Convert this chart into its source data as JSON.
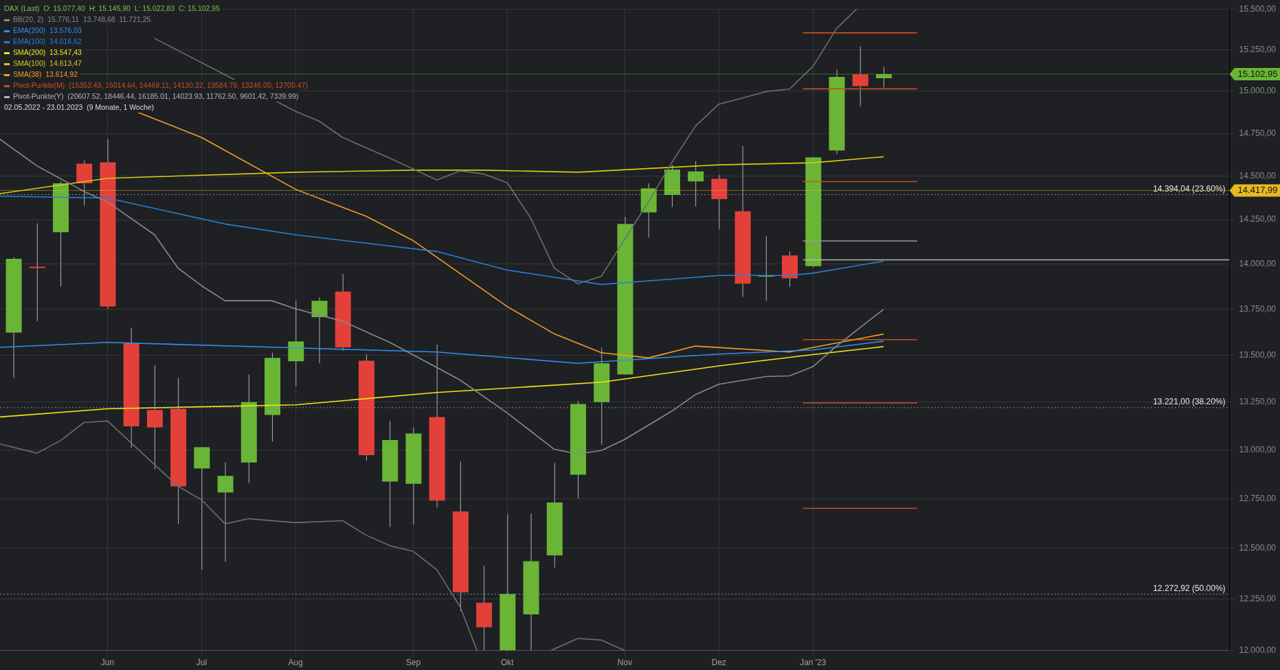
{
  "chart_data": {
    "type": "candlestick",
    "title": "DAX (Last)  O: 15.077,40  H: 15.145,90  L: 15.022,83  C: 15.102,95",
    "subtitle": "02.05.2022 - 23.01.2023  (9 Monate, 1 Woche)",
    "x": [
      "2022-05-09",
      "2022-05-16",
      "2022-05-23",
      "2022-05-30",
      "2022-06-06",
      "2022-06-13",
      "2022-06-20",
      "2022-06-27",
      "2022-07-04",
      "2022-07-11",
      "2022-07-18",
      "2022-07-25",
      "2022-08-01",
      "2022-08-08",
      "2022-08-15",
      "2022-08-22",
      "2022-08-29",
      "2022-09-05",
      "2022-09-12",
      "2022-09-19",
      "2022-09-26",
      "2022-10-03",
      "2022-10-10",
      "2022-10-17",
      "2022-10-24",
      "2022-10-31",
      "2022-11-07",
      "2022-11-14",
      "2022-11-21",
      "2022-11-28",
      "2022-12-05",
      "2022-12-12",
      "2022-12-19",
      "2022-12-26",
      "2023-01-02",
      "2023-01-09",
      "2023-01-16",
      "2023-01-23"
    ],
    "ohlc": [
      [
        13623,
        14040,
        13379,
        14030
      ],
      [
        13986,
        14230,
        13685,
        13985
      ],
      [
        14180,
        14470,
        13875,
        14459
      ],
      [
        14572,
        14592,
        14330,
        14459
      ],
      [
        14580,
        14715,
        13752,
        13765
      ],
      [
        13565,
        13648,
        13010,
        13123
      ],
      [
        13209,
        13447,
        12900,
        13117
      ],
      [
        13215,
        13379,
        12622,
        12812
      ],
      [
        12904,
        13014,
        12393,
        13014
      ],
      [
        12781,
        12935,
        12432,
        12866
      ],
      [
        12935,
        13397,
        12829,
        13250
      ],
      [
        13182,
        13514,
        13043,
        13486
      ],
      [
        13468,
        13797,
        13335,
        13575
      ],
      [
        13707,
        13815,
        13457,
        13797
      ],
      [
        13848,
        13945,
        13525,
        13543
      ],
      [
        13471,
        13507,
        12945,
        12973
      ],
      [
        12837,
        13151,
        12606,
        13051
      ],
      [
        12825,
        13117,
        12618,
        13085
      ],
      [
        13172,
        13558,
        12705,
        12740
      ],
      [
        12685,
        12940,
        12190,
        12282
      ],
      [
        12231,
        12413,
        12000,
        12112
      ],
      [
        12000,
        12671,
        12000,
        12274
      ],
      [
        12174,
        12674,
        12000,
        12435
      ],
      [
        12464,
        12932,
        12404,
        12730
      ],
      [
        12872,
        13257,
        12750,
        13240
      ],
      [
        13250,
        13541,
        13026,
        13457
      ],
      [
        13397,
        14267,
        13397,
        14226
      ],
      [
        14292,
        14459,
        14150,
        14430
      ],
      [
        14392,
        14567,
        14323,
        14539
      ],
      [
        14470,
        14588,
        14326,
        14528
      ],
      [
        14485,
        14508,
        14197,
        14368
      ],
      [
        14299,
        14676,
        13819,
        13891
      ],
      [
        13937,
        14158,
        13797,
        13938
      ],
      [
        14049,
        14071,
        13872,
        13921
      ],
      [
        13989,
        14609,
        13982,
        14609
      ],
      [
        14649,
        15130,
        14628,
        15086
      ],
      [
        15102,
        15272,
        14910,
        15030
      ],
      [
        15077.4,
        15145.9,
        15022.83,
        15102.95
      ]
    ],
    "colors": [
      "#6ab535",
      "#e4403a",
      "#6ab535",
      "#e4403a",
      "#e4403a",
      "#e4403a",
      "#e4403a",
      "#e4403a",
      "#6ab535",
      "#6ab535",
      "#6ab535",
      "#6ab535",
      "#6ab535",
      "#6ab535",
      "#e4403a",
      "#e4403a",
      "#6ab535",
      "#6ab535",
      "#e4403a",
      "#e4403a",
      "#e4403a",
      "#6ab535",
      "#6ab535",
      "#6ab535",
      "#6ab535",
      "#6ab535",
      "#6ab535",
      "#6ab535",
      "#6ab535",
      "#6ab535",
      "#e4403a",
      "#e4403a",
      "#6ab535",
      "#e4403a",
      "#6ab535",
      "#6ab535",
      "#e4403a",
      "#6ab535"
    ],
    "series": [
      {
        "type": "line",
        "name": "BB(20, 2)  15.776,11  13.748,68  11.721,25",
        "color": "#8a8a8a",
        "x": [
          "2022-05-05",
          "2022-05-16",
          "2022-05-30",
          "2022-06-06",
          "2022-06-20",
          "2022-06-27",
          "2022-07-04",
          "2022-07-11",
          "2022-07-25",
          "2022-08-01",
          "2022-08-15",
          "2022-08-29",
          "2022-09-12",
          "2022-09-19",
          "2022-10-03",
          "2022-10-17",
          "2022-10-24",
          "2022-10-31",
          "2022-11-07",
          "2022-11-21",
          "2022-11-28",
          "2022-12-05",
          "2022-12-19",
          "2022-12-26",
          "2023-01-02",
          "2023-01-09",
          "2023-01-23"
        ],
        "values": [
          14715,
          14560,
          14412,
          14352,
          14165,
          13978,
          13880,
          13797,
          13797,
          13752,
          13685,
          13570,
          13435,
          13367,
          13193,
          13003,
          12979,
          12997,
          13055,
          13203,
          13290,
          13345,
          13386,
          13390,
          13439,
          13550,
          13750
        ]
      },
      {
        "type": "line",
        "color": "#6e6e6e",
        "x": [
          "2022-06-20",
          "2022-08-01",
          "2022-08-08",
          "2022-08-15",
          "2022-08-29",
          "2022-09-12",
          "2022-09-19",
          "2022-09-26",
          "2022-10-03",
          "2022-10-10",
          "2022-10-17",
          "2022-10-24",
          "2022-10-31",
          "2022-11-07",
          "2022-11-14",
          "2022-11-21",
          "2022-11-28",
          "2022-12-05",
          "2022-12-12",
          "2022-12-19",
          "2022-12-26",
          "2023-01-02",
          "2023-01-09",
          "2023-01-15"
        ],
        "values": [
          15320,
          14880,
          14822,
          14726,
          14605,
          14478,
          14531,
          14513,
          14462,
          14259,
          13978,
          13891,
          13932,
          14142,
          14352,
          14580,
          14793,
          14923,
          14960,
          14998,
          15013,
          15150,
          15380,
          15500
        ]
      },
      {
        "type": "line",
        "color": "#6e6e6e",
        "x": [
          "2022-05-05",
          "2022-05-16",
          "2022-05-23",
          "2022-05-30",
          "2022-06-06",
          "2022-06-27",
          "2022-07-04",
          "2022-07-11",
          "2022-07-18",
          "2022-08-01",
          "2022-08-15",
          "2022-08-22",
          "2022-08-29",
          "2022-09-05",
          "2022-09-12",
          "2022-09-19",
          "2022-09-24",
          "2022-10-03",
          "2022-10-16",
          "2022-10-24",
          "2022-10-31",
          "2022-11-07"
        ],
        "values": [
          13031,
          12983,
          13048,
          13143,
          13151,
          12812,
          12744,
          12622,
          12648,
          12628,
          12638,
          12565,
          12513,
          12484,
          12393,
          12210,
          12000,
          null,
          12000,
          12058,
          12050,
          12000
        ]
      },
      {
        "type": "line",
        "name": "EMA(200)  13.576,03",
        "color": "#2f8ff0",
        "x": [
          "2022-05-05",
          "2022-06-06",
          "2022-08-01",
          "2022-09-12",
          "2022-10-24",
          "2022-12-05",
          "2023-01-02",
          "2023-01-23"
        ],
        "values": [
          13543,
          13570,
          13540,
          13518,
          13457,
          13507,
          13529,
          13576
        ]
      },
      {
        "type": "line",
        "name": "EMA(100)  14.016,62",
        "color": "#2a7fd4",
        "x": [
          "2022-05-05",
          "2022-06-06",
          "2022-07-11",
          "2022-08-01",
          "2022-09-12",
          "2022-10-03",
          "2022-10-31",
          "2022-12-05",
          "2022-12-26",
          "2023-01-02",
          "2023-01-23"
        ],
        "values": [
          14385,
          14374,
          14226,
          14165,
          14071,
          13967,
          13887,
          13937,
          13937,
          13950,
          14017
        ]
      },
      {
        "type": "line",
        "name": "SMA(200)  13.547,43",
        "color": "#f5e616",
        "x": [
          "2022-05-05",
          "2022-06-06",
          "2022-08-01",
          "2022-09-12",
          "2022-10-31",
          "2022-12-05",
          "2023-01-02",
          "2023-01-23"
        ],
        "values": [
          13172,
          13215,
          13236,
          13301,
          13356,
          13443,
          13504,
          13547
        ]
      },
      {
        "type": "line",
        "name": "SMA(100)  14.613,47",
        "color": "#d8cc10",
        "x": [
          "2022-05-05",
          "2022-06-06",
          "2022-08-01",
          "2022-09-05",
          "2022-09-26",
          "2022-10-24",
          "2022-12-05",
          "2023-01-02",
          "2023-01-23"
        ],
        "values": [
          14400,
          14488,
          14523,
          14535,
          14535,
          14523,
          14566,
          14578,
          14613
        ]
      },
      {
        "type": "line",
        "name": "SMA(38)  13.614,92",
        "color": "#f0a020",
        "x": [
          "2022-06-15",
          "2022-07-04",
          "2022-08-01",
          "2022-08-22",
          "2022-09-05",
          "2022-10-03",
          "2022-10-17",
          "2022-10-31",
          "2022-11-14",
          "2022-11-28",
          "2022-12-26",
          "2023-01-23"
        ],
        "values": [
          14875,
          14726,
          14424,
          14270,
          14132,
          13765,
          13616,
          13514,
          13486,
          13550,
          13518,
          13615
        ]
      },
      {
        "type": "line",
        "name": "Pivot-Punkte(M)  (15353.43, 15014.64, 14469.11, 14130.32, 13584.79, 13246.00, 12700.47)",
        "color": "#c8501e",
        "x": [
          "2022-12-30",
          "2023-02-02"
        ],
        "values": [
          15353.43,
          15353.43
        ]
      },
      {
        "type": "line",
        "color": "#c8501e",
        "x": [
          "2022-12-30",
          "2023-02-02"
        ],
        "values": [
          15014.64,
          15014.64
        ]
      },
      {
        "type": "line",
        "color": "#c8501e",
        "x": [
          "2022-12-30",
          "2023-02-02"
        ],
        "values": [
          14469.11,
          14469.11
        ]
      },
      {
        "type": "line",
        "color": "#c8501e",
        "x": [
          "2022-12-30",
          "2023-02-02"
        ],
        "values": [
          13584.79,
          13584.79
        ]
      },
      {
        "type": "line",
        "color": "#c8501e",
        "x": [
          "2022-12-30",
          "2023-02-02"
        ],
        "values": [
          13246.0,
          13246.0
        ]
      },
      {
        "type": "line",
        "color": "#c8501e",
        "x": [
          "2022-12-30",
          "2023-02-02"
        ],
        "values": [
          12700.47,
          12700.47
        ]
      },
      {
        "type": "line",
        "color": "#9a9a9a",
        "x": [
          "2022-12-30",
          "2023-02-02"
        ],
        "values": [
          14130.32,
          14130.32
        ]
      },
      {
        "type": "line",
        "name": "Pivot-Punkte(Y)  (20607.52, 18446.44, 16185.01, 14023.93, 11762.50, 9601.42, 7339.99)",
        "color": "#b4b4b4",
        "x": [
          "2022-12-30",
          "2023-05-06"
        ],
        "values": [
          14023.93,
          14023.93
        ]
      }
    ],
    "xlim": [
      "2022-05-05",
      "2023-05-06"
    ],
    "xticks": [
      {
        "value": "2022-06-06",
        "label": "Jun"
      },
      {
        "value": "2022-07-04",
        "label": "Jul"
      },
      {
        "value": "2022-08-01",
        "label": "Aug"
      },
      {
        "value": "2022-09-05",
        "label": "Sep"
      },
      {
        "value": "2022-10-03",
        "label": "Okt"
      },
      {
        "value": "2022-11-07",
        "label": "Nov"
      },
      {
        "value": "2022-12-05",
        "label": "Dez"
      },
      {
        "value": "2023-01-02",
        "label": "Jan '23"
      }
    ],
    "ylim": [
      12000,
      15500
    ],
    "yticks": [
      {
        "value": 12000,
        "label": "12.000,00"
      },
      {
        "value": 12250,
        "label": "12.250,00"
      },
      {
        "value": 12500,
        "label": "12.500,00"
      },
      {
        "value": 12750,
        "label": "12.750,00"
      },
      {
        "value": 13000,
        "label": "13.000,00"
      },
      {
        "value": 13250,
        "label": "13.250,00"
      },
      {
        "value": 13500,
        "label": "13.500,00"
      },
      {
        "value": 13750,
        "label": "13.750,00"
      },
      {
        "value": 14000,
        "label": "14.000,00"
      },
      {
        "value": 14250,
        "label": "14.250,00"
      },
      {
        "value": 14500,
        "label": "14.500,00"
      },
      {
        "value": 14750,
        "label": "14.750,00"
      },
      {
        "value": 15000,
        "label": "15.000,00"
      },
      {
        "value": 15250,
        "label": "15.250,00"
      },
      {
        "value": 15500,
        "label": "15.500,00"
      }
    ],
    "log": "y",
    "grid": true,
    "legend": "top left",
    "marker": "none",
    "ref_lines": [
      {
        "axis": "y",
        "value": 14394.04,
        "label": "14.394,04 (23.60%)",
        "color": "#8c8c8c",
        "line_style": "dotted"
      },
      {
        "axis": "y",
        "value": 13221.0,
        "label": "13.221,00 (38.20%)",
        "color": "#8c8c8c",
        "line_style": "dotted"
      },
      {
        "axis": "y",
        "value": 12272.92,
        "label": "12.272,92 (50.00%)",
        "color": "#8c8c8c",
        "line_style": "dotted"
      },
      {
        "axis": "y",
        "value": 15102.95,
        "label": "15.102,95",
        "color": "#6ab535",
        "line_style": "solid"
      },
      {
        "axis": "y",
        "value": 14417.99,
        "label": "14.417,99",
        "color": "#e8b820",
        "line_style": "solid"
      }
    ]
  }
}
